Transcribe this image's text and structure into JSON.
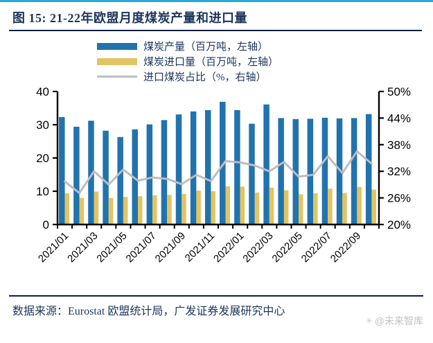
{
  "page": {
    "figure_title": "图 15: 21-22年欧盟月度煤炭产量和进口量",
    "source_note": "数据来源：Eurostat 欧盟统计局，广发证券发展研究中心",
    "watermark": "@未来智库"
  },
  "colors": {
    "top_rule": "#2AA7DC",
    "title_text": "#1C355E",
    "production_bar": "#2173AE",
    "import_bar": "#E2C463",
    "ratio_line": "#BDBDBD",
    "axis": "#000000",
    "watermark": "#C3C3C3"
  },
  "chart_data": {
    "type": "bar",
    "subtype": "grouped bars with overlay line",
    "categories": [
      "2021/01",
      "2021/02",
      "2021/03",
      "2021/04",
      "2021/05",
      "2021/06",
      "2021/07",
      "2021/08",
      "2021/09",
      "2021/10",
      "2021/11",
      "2021/12",
      "2022/01",
      "2022/02",
      "2022/03",
      "2022/04",
      "2022/05",
      "2022/06",
      "2022/07",
      "2022/08",
      "2022/09",
      "2022/10"
    ],
    "x_tick_labels": [
      "2021/01",
      "2021/03",
      "2021/05",
      "2021/07",
      "2021/09",
      "2021/11",
      "2022/01",
      "2022/03",
      "2022/05",
      "2022/07",
      "2022/09"
    ],
    "series": [
      {
        "name": "煤炭产量（百万吨，左轴）",
        "type": "bar",
        "axis": "left",
        "color": "#2173AE",
        "values": [
          32.3,
          29.4,
          31.2,
          28.2,
          26.3,
          28.6,
          30.1,
          31.4,
          33.1,
          34.0,
          34.4,
          36.9,
          34.4,
          30.3,
          36.1,
          32.0,
          31.7,
          31.8,
          32.1,
          31.9,
          32.0,
          33.2
        ]
      },
      {
        "name": "煤炭进口量（百万吨，左轴）",
        "type": "bar",
        "axis": "left",
        "color": "#E2C463",
        "values": [
          9.4,
          8.0,
          9.9,
          8.0,
          8.3,
          8.5,
          8.8,
          8.9,
          9.2,
          10.2,
          10.0,
          11.5,
          11.4,
          9.6,
          11.1,
          10.3,
          9.1,
          9.4,
          10.8,
          9.5,
          11.3,
          10.5
        ]
      },
      {
        "name": "进口煤炭占比（%，右轴）",
        "type": "line",
        "axis": "right",
        "color": "#BDBDBD",
        "values": [
          29.7,
          27.1,
          32.0,
          29.0,
          32.4,
          29.9,
          30.6,
          30.3,
          29.1,
          31.2,
          29.8,
          34.3,
          34.0,
          33.3,
          32.0,
          34.1,
          30.8,
          31.2,
          35.4,
          31.6,
          36.5,
          33.7
        ]
      }
    ],
    "left_axis": {
      "min": 0,
      "max": 40,
      "ticks": [
        0,
        10,
        20,
        30,
        40
      ]
    },
    "right_axis": {
      "min": 20,
      "max": 50,
      "tick_labels": [
        "20%",
        "26%",
        "32%",
        "38%",
        "44%",
        "50%"
      ],
      "tick_values": [
        20,
        26,
        32,
        38,
        44,
        50
      ]
    },
    "grid": false,
    "legend_position": "top-center"
  }
}
